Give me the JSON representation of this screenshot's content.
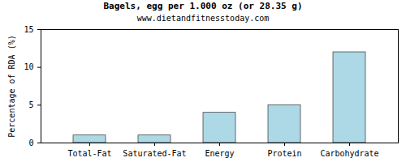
{
  "chart_data": {
    "type": "bar",
    "title": "Bagels, egg per 1.000 oz (or 28.35 g)",
    "subtitle": "www.dietandfitnesstoday.com",
    "ylabel": "Percentage of RDA (%)",
    "categories": [
      "Total-Fat",
      "Saturated-Fat",
      "Energy",
      "Protein",
      "Carbohydrate"
    ],
    "values": [
      1,
      1,
      4,
      5,
      12
    ],
    "color": "#add8e6",
    "ylim": [
      0,
      15
    ],
    "yticks": [
      0,
      5,
      10,
      15
    ],
    "grid": false
  }
}
